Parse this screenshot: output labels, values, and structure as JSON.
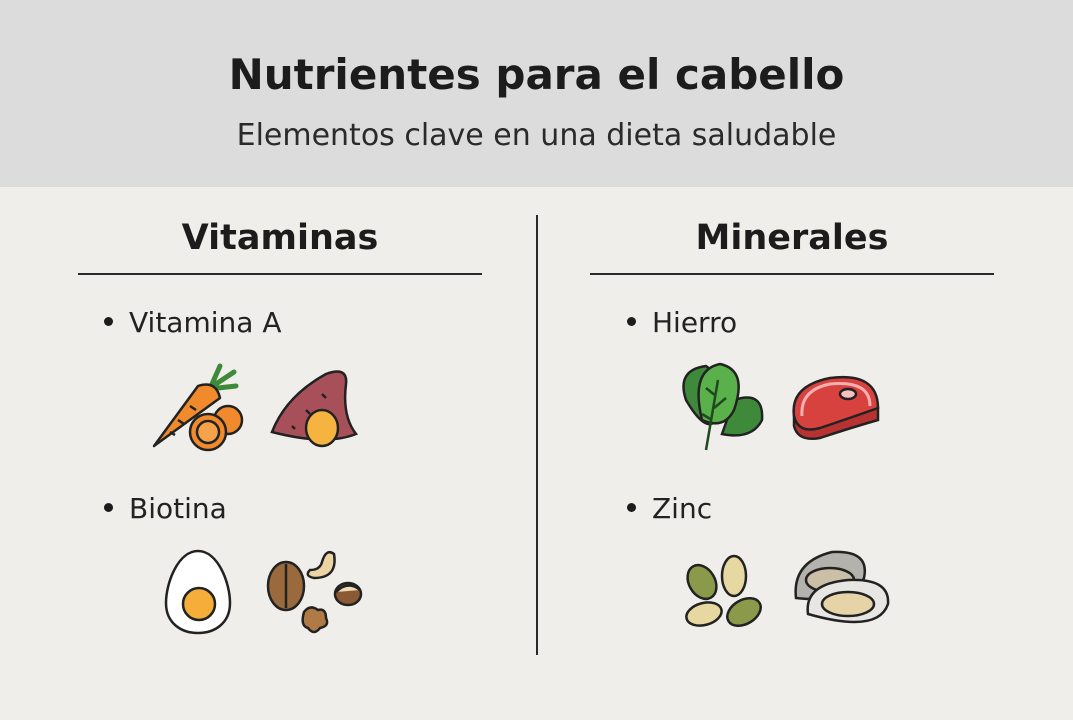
{
  "header": {
    "title": "Nutrientes para el cabello",
    "subtitle": "Elementos clave en una dieta saludable"
  },
  "columns": [
    {
      "title": "Vitaminas",
      "items": [
        {
          "label": "Vitamina A",
          "icons": [
            "carrot-icon",
            "sweet-potato-icon"
          ]
        },
        {
          "label": "Biotina",
          "icons": [
            "egg-icon",
            "nuts-icon"
          ]
        }
      ]
    },
    {
      "title": "Minerales",
      "items": [
        {
          "label": "Hierro",
          "icons": [
            "spinach-icon",
            "steak-icon"
          ]
        },
        {
          "label": "Zinc",
          "icons": [
            "pumpkin-seeds-icon",
            "oyster-icon"
          ]
        }
      ]
    }
  ],
  "colors": {
    "header_bg": "#dcdcdc",
    "body_bg": "#efeeea",
    "carrot": "#f08a2c",
    "sweet_potato": "#a8505a",
    "spinach": "#4c9a3c",
    "steak": "#d8423e"
  }
}
